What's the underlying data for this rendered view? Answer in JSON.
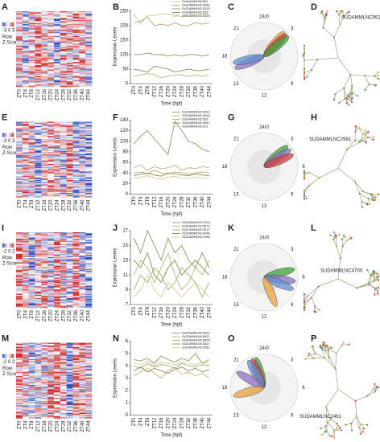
{
  "chart_data": [
    {
      "type": "line",
      "letter": "B",
      "ylabel": "Expression Levels",
      "xlabel": "Time (hpf)",
      "categories": [
        "ZT0",
        "ZT4",
        "ZT8",
        "ZT12",
        "ZT16",
        "ZT20",
        "ZT24",
        "ZT28",
        "ZT32",
        "ZT36",
        "ZT40",
        "ZT44"
      ],
      "ylim": [
        0,
        255
      ],
      "yticks": [
        0,
        50,
        100,
        150,
        200,
        250
      ],
      "series": [
        {
          "name": "SUDAMMLNC951",
          "color": "#cfcf9a",
          "values": [
            240,
            205,
            235,
            235,
            240,
            240,
            240,
            230,
            240,
            240,
            240,
            240
          ]
        },
        {
          "name": "SUDAMMLNC2981",
          "color": "#b5a672",
          "values": [
            210,
            215,
            230,
            200,
            205,
            200,
            210,
            200,
            200,
            210,
            205,
            210
          ]
        },
        {
          "name": "SUDAMMLNC4518",
          "color": "#a08f5c",
          "values": [
            100,
            100,
            105,
            100,
            100,
            95,
            100,
            95,
            100,
            100,
            95,
            100
          ]
        },
        {
          "name": "SUDAMMLNC516",
          "color": "#8d8a52",
          "values": [
            50,
            45,
            40,
            60,
            55,
            50,
            40,
            45,
            50,
            45,
            45,
            50
          ]
        },
        {
          "name": "SUDAMMLNC5200",
          "color": "#c4b27c",
          "values": [
            25,
            30,
            35,
            30,
            20,
            25,
            30,
            30,
            25,
            30,
            25,
            30
          ]
        }
      ]
    },
    {
      "type": "line",
      "letter": "F",
      "ylabel": "Expression Levels",
      "xlabel": "Time (hpf)",
      "categories": [
        "ZT0",
        "ZT4",
        "ZT8",
        "ZT12",
        "ZT16",
        "ZT20",
        "ZT24",
        "ZT28",
        "ZT32",
        "ZT36",
        "ZT40",
        "ZT44"
      ],
      "ylim": [
        0,
        140
      ],
      "yticks": [
        0,
        20,
        40,
        60,
        80,
        100,
        120,
        140
      ],
      "series": [
        {
          "name": "SUDAMMLNC2981",
          "color": "#a08f5c",
          "values": [
            95,
            110,
            120,
            105,
            90,
            75,
            138,
            120,
            100,
            95,
            85,
            80
          ]
        },
        {
          "name": "SUDAMMLNC4518",
          "color": "#c4b27c",
          "values": [
            50,
            55,
            45,
            52,
            48,
            50,
            55,
            45,
            50,
            48,
            52,
            50
          ]
        },
        {
          "name": "SUDAMMLNC516",
          "color": "#b5a672",
          "values": [
            40,
            42,
            38,
            45,
            40,
            38,
            42,
            40,
            38,
            40,
            42,
            40
          ]
        },
        {
          "name": "SUDAMMLNC4587",
          "color": "#8d8a52",
          "values": [
            35,
            38,
            40,
            36,
            34,
            40,
            38,
            36,
            35,
            38,
            36,
            35
          ]
        },
        {
          "name": "SUDAMMLNC101",
          "color": "#cfcf9a",
          "values": [
            30,
            32,
            35,
            30,
            28,
            32,
            34,
            30,
            30,
            32,
            30,
            30
          ]
        }
      ]
    },
    {
      "type": "line",
      "letter": "J",
      "ylabel": "Expression Levels",
      "xlabel": "Time (hpf)",
      "categories": [
        "ZT0",
        "ZT4",
        "ZT8",
        "ZT12",
        "ZT16",
        "ZT20",
        "ZT24",
        "ZT28",
        "ZT32",
        "ZT36",
        "ZT40",
        "ZT44"
      ],
      "ylim": [
        7,
        17
      ],
      "yticks": [
        7,
        9,
        11,
        13,
        15,
        17
      ],
      "series": [
        {
          "name": "SUDAMMLNC4700",
          "color": "#a08f5c",
          "values": [
            16,
            14,
            17,
            15,
            13,
            16,
            14,
            15,
            13,
            12,
            14,
            12
          ]
        },
        {
          "name": "SUDAMMLNC3872",
          "color": "#c4b27c",
          "values": [
            11,
            13,
            12,
            10,
            12,
            14,
            11,
            9,
            10,
            12,
            11,
            13
          ]
        },
        {
          "name": "SUDAMMLNC1617",
          "color": "#b5a672",
          "values": [
            9,
            11,
            10,
            12,
            11,
            9,
            10,
            12,
            11,
            10,
            8,
            10
          ]
        },
        {
          "name": "SUDAMMLNC4248",
          "color": "#8d8a52",
          "values": [
            13,
            12,
            14,
            11,
            10,
            12,
            13,
            11,
            12,
            13,
            12,
            11
          ]
        },
        {
          "name": "SUDAMMLNC1086",
          "color": "#cfcf9a",
          "values": [
            8,
            9,
            11,
            9,
            8,
            10,
            9,
            8,
            9,
            10,
            9,
            8
          ]
        }
      ]
    },
    {
      "type": "line",
      "letter": "N",
      "ylabel": "Expression Levels",
      "xlabel": "Time (hpf)",
      "categories": [
        "ZT0",
        "ZT4",
        "ZT8",
        "ZT12",
        "ZT16",
        "ZT20",
        "ZT24",
        "ZT28",
        "ZT32",
        "ZT36",
        "ZT40",
        "ZT44"
      ],
      "ylim": [
        0,
        6
      ],
      "yticks": [
        0,
        1,
        2,
        3,
        4,
        5,
        6
      ],
      "series": [
        {
          "name": "SUDAMMLNC2461",
          "color": "#a08f5c",
          "values": [
            4.5,
            4.4,
            4.6,
            4.2,
            4.8,
            4.5,
            4.3,
            4.6,
            4.4,
            5,
            4.2,
            4.5
          ]
        },
        {
          "name": "SUDAMMLNC5937",
          "color": "#c4b27c",
          "values": [
            3.2,
            3.5,
            3.8,
            3.4,
            3,
            3.6,
            3.9,
            3.3,
            3.5,
            3.2,
            3.4,
            3
          ]
        },
        {
          "name": "SUDAMMLNC3694",
          "color": "#b5a672",
          "values": [
            4,
            3.8,
            4.2,
            3.9,
            4.1,
            4,
            3.8,
            4.2,
            4,
            3.9,
            4.1,
            4
          ]
        },
        {
          "name": "SUDAMMLNC5447",
          "color": "#8d8a52",
          "values": [
            3.6,
            3.9,
            3.5,
            3.8,
            3.6,
            3.4,
            3.7,
            3.9,
            3.6,
            3.8,
            3.5,
            3.7
          ]
        },
        {
          "name": "SUDAMMLNC2381",
          "color": "#cfcf9a",
          "values": [
            4.2,
            4.1,
            4.4,
            4,
            4.3,
            4.2,
            4.1,
            4.3,
            4.2,
            4.1,
            4.3,
            4.2
          ]
        }
      ]
    }
  ],
  "heatmaps": [
    {
      "letter": "A",
      "scale": "-3 0 3",
      "row": "Row",
      "zscore": "Z-Score",
      "columns": [
        "ZT0",
        "ZT4",
        "ZT8",
        "ZT12",
        "ZT16",
        "ZT20",
        "ZT24",
        "ZT28",
        "ZT32",
        "ZT36",
        "ZT40",
        "ZT44"
      ]
    },
    {
      "letter": "E",
      "scale": "-3 0 3",
      "row": "Row",
      "zscore": "Z-Score",
      "columns": [
        "ZT0",
        "ZT4",
        "ZT8",
        "ZT12",
        "ZT16",
        "ZT20",
        "ZT24",
        "ZT28",
        "ZT32",
        "ZT36",
        "ZT40",
        "ZT44"
      ]
    },
    {
      "letter": "I",
      "scale": "-2 0 2",
      "row": "Row",
      "zscore": "Z-Score",
      "columns": [
        "ZT0",
        "ZT4",
        "ZT8",
        "ZT12",
        "ZT16",
        "ZT20",
        "ZT24",
        "ZT28",
        "ZT32",
        "ZT36",
        "ZT40",
        "ZT44"
      ]
    },
    {
      "letter": "M",
      "scale": "-2 0 2",
      "row": "Row",
      "zscore": "Z-Score",
      "columns": [
        "ZT0",
        "ZT4",
        "ZT8",
        "ZT12",
        "ZT16",
        "ZT20",
        "ZT24",
        "ZT28",
        "ZT32",
        "ZT36",
        "ZT40",
        "ZT44"
      ]
    }
  ],
  "radials": [
    {
      "letter": "C",
      "hours": [
        "24/0",
        "3",
        "6",
        "9",
        "12",
        "15",
        "18",
        "21"
      ],
      "petals": [
        {
          "phase": 2.6,
          "color": "#e8a040"
        },
        {
          "phase": 3,
          "color": "#d04040"
        },
        {
          "phase": 3.4,
          "color": "#40a040"
        },
        {
          "phase": 16.5,
          "color": "#9070c0"
        },
        {
          "phase": 17.2,
          "color": "#6090d0"
        }
      ]
    },
    {
      "letter": "G",
      "hours": [
        "24/0",
        "3",
        "6",
        "9",
        "12",
        "15",
        "18",
        "21"
      ],
      "petals": [
        {
          "phase": 3.2,
          "color": "#40a040"
        },
        {
          "phase": 3.8,
          "color": "#9070c0"
        },
        {
          "phase": 4.5,
          "color": "#d04040"
        }
      ]
    },
    {
      "letter": "K",
      "hours": [
        "24/0",
        "3",
        "6",
        "9",
        "12",
        "15",
        "18",
        "21"
      ],
      "petals": [
        {
          "phase": 5,
          "color": "#40a040"
        },
        {
          "phase": 6.5,
          "color": "#9070c0"
        },
        {
          "phase": 7.5,
          "color": "#6090d0"
        },
        {
          "phase": 10.5,
          "color": "#e8a040"
        }
      ]
    },
    {
      "letter": "O",
      "hours": [
        "24/0",
        "3",
        "6",
        "9",
        "12",
        "15",
        "18",
        "21"
      ],
      "petals": [
        {
          "phase": 23,
          "color": "#40a040"
        },
        {
          "phase": 22.5,
          "color": "#d04040"
        },
        {
          "phase": 22,
          "color": "#6090d0"
        },
        {
          "phase": 20,
          "color": "#9070c0"
        },
        {
          "phase": 17,
          "color": "#e8a040"
        }
      ]
    }
  ],
  "trees": [
    {
      "letter": "D",
      "label": "SUDAMMLNC951"
    },
    {
      "letter": "H",
      "label": "SUDAMMLNC2981"
    },
    {
      "letter": "L",
      "label": "SUDAMMLNC4700"
    },
    {
      "letter": "P",
      "label": "SUDAMMLNC2461"
    }
  ]
}
